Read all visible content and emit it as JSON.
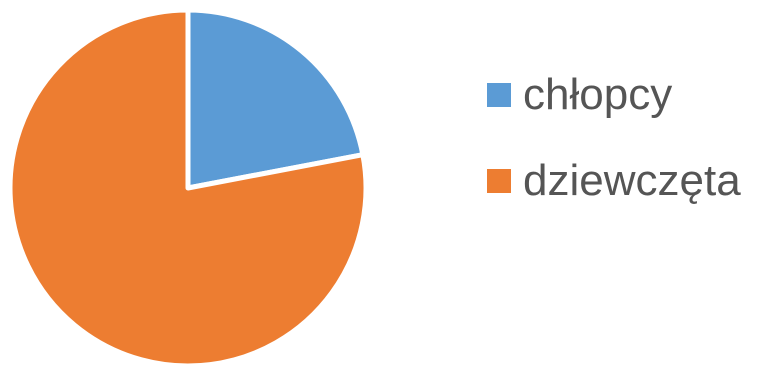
{
  "chart_data": {
    "type": "pie",
    "categories": [
      "chłopcy",
      "dziewczęta"
    ],
    "values": [
      22,
      78
    ],
    "colors": [
      "#5B9BD5",
      "#ED7D31"
    ],
    "title": "",
    "legend_position": "right",
    "legend": [
      {
        "label": "chłopcy",
        "color": "#5B9BD5"
      },
      {
        "label": "dziewczęta",
        "color": "#ED7D31"
      }
    ]
  }
}
